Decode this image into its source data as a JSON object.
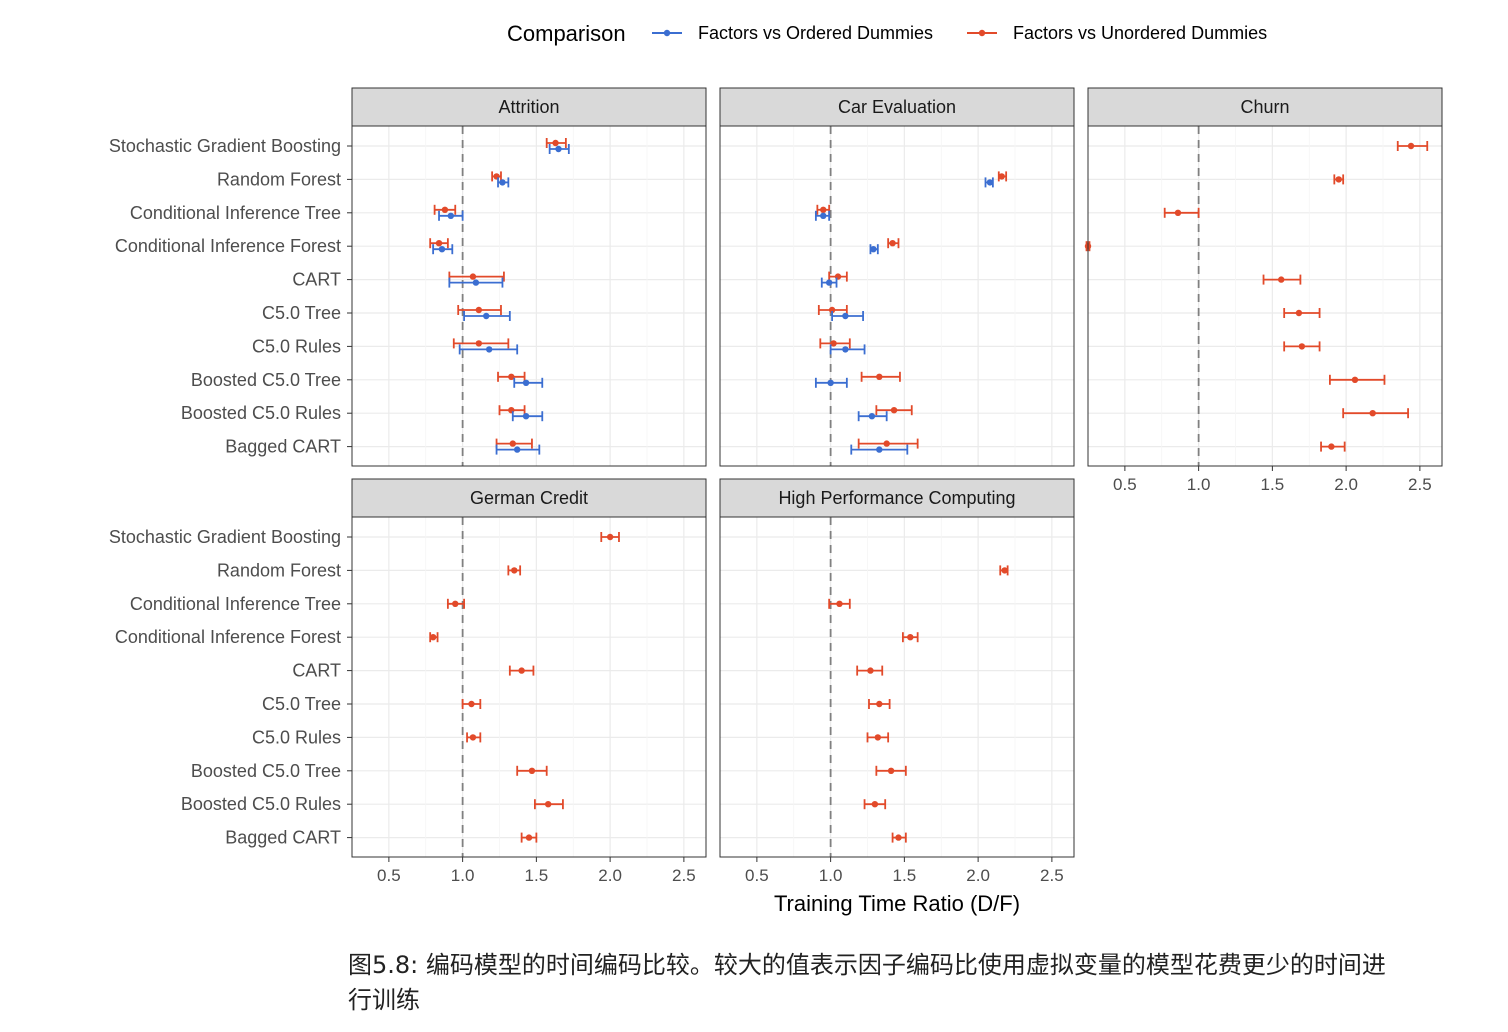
{
  "legend": {
    "title": "Comparison",
    "items": [
      {
        "label": "Factors vs Ordered Dummies",
        "color": "#3b6ed1"
      },
      {
        "label": "Factors vs Unordered Dummies",
        "color": "#e24a2a"
      }
    ]
  },
  "caption": "图5.8: 编码模型的时间编码比较。较大的值表示因子编码比使用虚拟变量的模型花费更少的时间进行训练",
  "chart_data": {
    "type": "scatter",
    "subtype": "faceted point-range (dot with error bars)",
    "xlabel": "Training Time Ratio (D/F)",
    "ylabel": "",
    "xlim": [
      0.25,
      2.65
    ],
    "xticks": [
      "0.5",
      "1.0",
      "1.5",
      "2.0",
      "2.5"
    ],
    "reference_line": 1.0,
    "grid": true,
    "legend_position": "top",
    "categories": [
      "Stochastic Gradient Boosting",
      "Random Forest",
      "Conditional Inference Tree",
      "Conditional Inference Forest",
      "CART",
      "C5.0 Tree",
      "C5.0 Rules",
      "Boosted C5.0 Tree",
      "Boosted C5.0 Rules",
      "Bagged CART"
    ],
    "panels": [
      {
        "title": "Attrition",
        "series": [
          {
            "name": "Factors vs Unordered Dummies",
            "color": "#e24a2a",
            "values": [
              1.63,
              1.23,
              0.88,
              0.84,
              1.07,
              1.11,
              1.11,
              1.33,
              1.33,
              1.34
            ],
            "lower": [
              1.57,
              1.2,
              0.81,
              0.78,
              0.91,
              0.97,
              0.94,
              1.24,
              1.25,
              1.23
            ],
            "upper": [
              1.7,
              1.26,
              0.95,
              0.9,
              1.28,
              1.26,
              1.31,
              1.42,
              1.42,
              1.47
            ]
          },
          {
            "name": "Factors vs Ordered Dummies",
            "color": "#3b6ed1",
            "values": [
              1.65,
              1.27,
              0.92,
              0.86,
              1.09,
              1.16,
              1.18,
              1.43,
              1.43,
              1.37
            ],
            "lower": [
              1.59,
              1.24,
              0.84,
              0.8,
              0.91,
              1.01,
              0.98,
              1.35,
              1.34,
              1.23
            ],
            "upper": [
              1.72,
              1.31,
              1.0,
              0.93,
              1.27,
              1.32,
              1.37,
              1.54,
              1.54,
              1.52
            ]
          }
        ]
      },
      {
        "title": "Car Evaluation",
        "series": [
          {
            "name": "Factors vs Unordered Dummies",
            "color": "#e24a2a",
            "values": [
              null,
              2.16,
              0.95,
              1.42,
              1.05,
              1.01,
              1.02,
              1.33,
              1.43,
              1.38
            ],
            "lower": [
              null,
              2.14,
              0.91,
              1.39,
              0.99,
              0.92,
              0.93,
              1.21,
              1.31,
              1.19
            ],
            "upper": [
              null,
              2.19,
              0.99,
              1.46,
              1.11,
              1.11,
              1.13,
              1.47,
              1.55,
              1.59
            ]
          },
          {
            "name": "Factors vs Ordered Dummies",
            "color": "#3b6ed1",
            "values": [
              null,
              2.08,
              0.95,
              1.29,
              0.99,
              1.1,
              1.1,
              1.0,
              1.28,
              1.33
            ],
            "lower": [
              null,
              2.05,
              0.9,
              1.27,
              0.94,
              1.01,
              1.0,
              0.9,
              1.19,
              1.14
            ],
            "upper": [
              null,
              2.1,
              0.99,
              1.32,
              1.04,
              1.22,
              1.23,
              1.11,
              1.38,
              1.52
            ]
          }
        ]
      },
      {
        "title": "Churn",
        "series": [
          {
            "name": "Factors vs Unordered Dummies",
            "color": "#e24a2a",
            "values": [
              2.44,
              1.95,
              0.86,
              0.25,
              1.56,
              1.68,
              1.7,
              2.06,
              2.18,
              1.9
            ],
            "lower": [
              2.35,
              1.92,
              0.77,
              0.24,
              1.44,
              1.58,
              1.58,
              1.89,
              1.98,
              1.83
            ],
            "upper": [
              2.55,
              1.98,
              1.0,
              0.26,
              1.69,
              1.82,
              1.82,
              2.26,
              2.42,
              1.99
            ]
          }
        ]
      },
      {
        "title": "German Credit",
        "series": [
          {
            "name": "Factors vs Unordered Dummies",
            "color": "#e24a2a",
            "values": [
              2.0,
              1.35,
              0.95,
              0.8,
              1.4,
              1.06,
              1.07,
              1.47,
              1.58,
              1.45
            ],
            "lower": [
              1.94,
              1.31,
              0.9,
              0.78,
              1.32,
              1.0,
              1.03,
              1.37,
              1.49,
              1.4
            ],
            "upper": [
              2.06,
              1.39,
              1.01,
              0.83,
              1.48,
              1.12,
              1.12,
              1.57,
              1.68,
              1.5
            ]
          }
        ]
      },
      {
        "title": "High Performance Computing",
        "series": [
          {
            "name": "Factors vs Unordered Dummies",
            "color": "#e24a2a",
            "values": [
              null,
              2.18,
              1.06,
              1.54,
              1.27,
              1.33,
              1.32,
              1.41,
              1.3,
              1.46
            ],
            "lower": [
              null,
              2.15,
              0.99,
              1.49,
              1.18,
              1.26,
              1.25,
              1.31,
              1.23,
              1.42
            ],
            "upper": [
              null,
              2.2,
              1.13,
              1.59,
              1.35,
              1.4,
              1.39,
              1.51,
              1.37,
              1.51
            ]
          }
        ]
      }
    ]
  }
}
